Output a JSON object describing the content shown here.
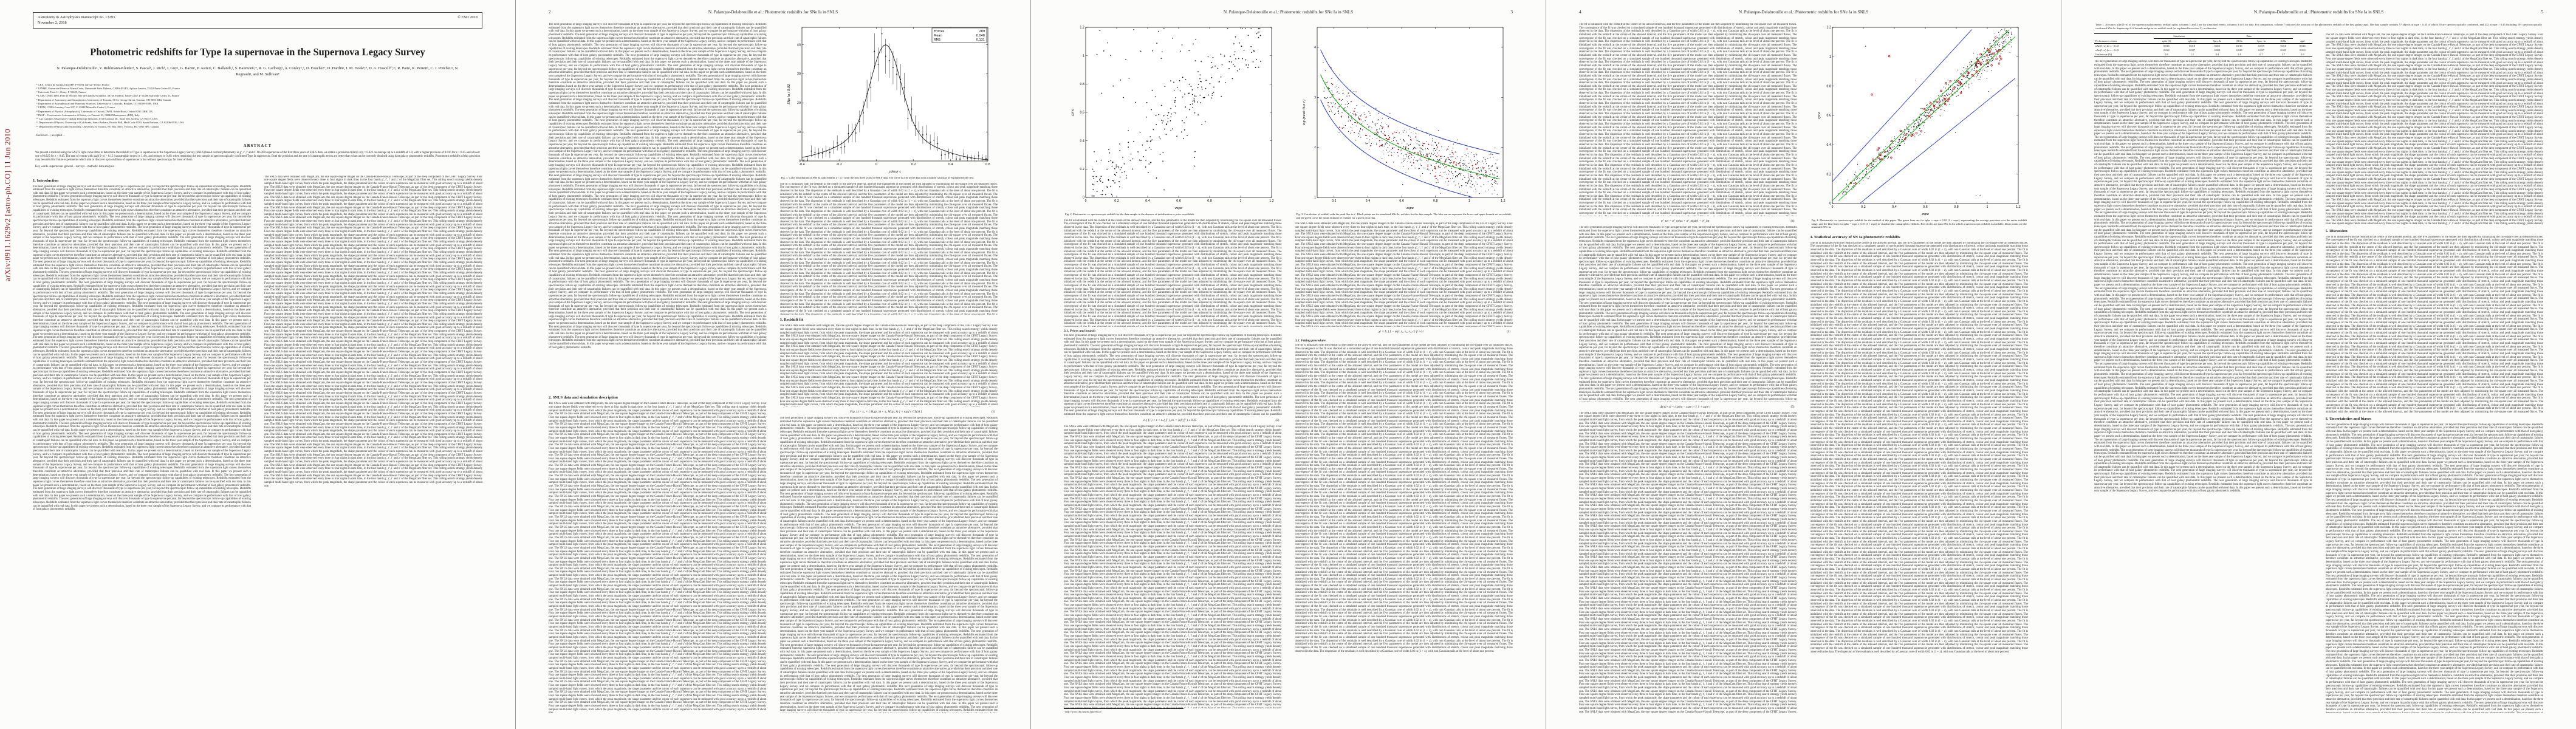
{
  "arxiv": "arXiv:0911.1629v2  [astro-ph.CO]  11 Jun 2010",
  "running_title": "N. Palanque-Delabrouille et al.: Photometric redshifts for SNe Ia in SNLS",
  "pages": {
    "p2": {
      "num": "2"
    },
    "p3": {
      "num": "3"
    },
    "p4": {
      "num": "4"
    },
    "p5": {
      "num": "5"
    }
  },
  "page1": {
    "manuscript": "Astronomy & Astrophysics manuscript no. 13293",
    "date": "November 2, 2018",
    "copyright": "© ESO 2018",
    "title": "Photometric redshifts for Type Ia supernovae in the Supernova Legacy Survey",
    "authors": "N. Palanque-Delabrouille¹, V. Ruhlmann-Kleider¹, S. Pascal¹, J. Rich¹, J. Guy², G. Bazin¹, P. Astier², C. Balland²,³, S. Baumont²,⁴, R. G. Carlberg⁵, A. Conley⁵,⁶, D. Fouchez⁷, D. Hardin², I. M. Hook⁸,⁹, D. A. Howell¹⁰,¹¹, R. Pain², K. Perrett⁵, C. J. Pritchet¹², N. Regnault², and M. Sullivan⁸",
    "affiliations": [
      "¹ CEA, Centre de Saclay, Irfu/SPP, F-91191 Gif-sur-Yvette, France",
      "² LPNHE, Université Pierre et Marie Curie, Université Paris Diderot, CNRS-IN2P3, 4 place Jussieu, 75252 Paris Cedex 05, France",
      "³ Université Paris 11, Orsay, F-91405, France",
      "⁴ LAM, CNRS, BP8, Pôle de l'Étoile, Site de Château-Gombert, 38 rue Frédéric Joliot-Curie, F-13388 Marseille Cedex 13, France",
      "⁵ Department of Astronomy and Astrophysics, University of Toronto, 50 St. George Street, Toronto, ON M5S 3H4, Canada",
      "⁶ Department of Astrophysical and Planetary Sciences, University of Colorado, Boulder, CO 80309-0389, USA",
      "⁷ CPPM, CNRS-Luminy, Case 907, F-13288 Marseille Cedex 9, France",
      "⁸ Department of Physics (Astrophysics), University of Oxford, DWB, Keble Road, Oxford OX1 3RH, UK",
      "⁹ INAF – Osservatorio Astronomico di Roma, via Frascati 33, 00040 Monteporzio (RM), Italy",
      "¹⁰ Las Cumbres Observatory Global Telescope Network, 6740 Cortona Dr., Suite 102, Goleta, CA 93117, USA",
      "¹¹ Department of Physics, University of California, Santa Barbara, Broida Hall, Mail Code 9530, Santa Barbara, CA 93106-9530, USA",
      "¹² Department of Physics and Astronomy, University of Victoria, PO Box 3055, Victoria, BC V8W 3P6, Canada"
    ],
    "received": "Received ...; accepted ...",
    "abstract_label": "ABSTRACT",
    "abstract": "We present a method using the SALT2 light curve fitter to determine the redshift of Type Ia supernovae in the Supernova Legacy Survey (SNLS) based on their photometry in g′, r′, i′ and z′. On 289 supernovae of the first three years of SNLS data, we obtain a precision σ(Δz/(1+z)) = 0.022 on average up to a redshift of 1.0, with a higher precision of 0.016 for z < 0.45 and a lower one of 0.025 for z > 0.45. The rate of events with |Δz|/(1+z) > 0.15 (catastrophic errors) is 1.4%, and reduces to 0.4% when restricting the test sample to spectroscopically confirmed Type Ia supernovae. Both the precision and the rate of catastrophic errors are better than what can be currently obtained using host galaxy photometric redshifts. Photometric redshifts of this precision may be useful for future experiments which aim to discover up to millions of supernovae Ia but without spectroscopy for most of them.",
    "keywords": "Key words.  supernovae: general – surveys – methods: data analysis"
  },
  "headings": {
    "s1": "1. Introduction",
    "s2": "2. SNLS data and simulation description",
    "s3": "3. Redshift fit",
    "s31": "3.1. Priors and bounds",
    "s32": "3.2. Fitting procedure",
    "s4": "4. Statistical accuracy of SN Ia photometric redshifts",
    "s5": "5. Discussion",
    "s6": "6. Uncertainties and biases"
  },
  "captions": {
    "fig1": "Fig. 1. Color distribution of SNe Ia with redshift z < 0.7 from the first three years of SNLS data. The curve is a fit to the data with a double Gaussian as explained in the text.",
    "fig2": "Fig. 2. Photometric vs. spectroscopic redshift for the data sample in the absence of initialization or prior on redshift.",
    "fig3": "Fig. 3. Correlation of redshift with the peak flux in r′. Black points are for simulated SNe Ia, red dots for the data sample. The blue curves represent the lower and upper bounds set on redshift, and the green curve the mean estimate of redshift for a given peak flux.",
    "fig4": "Fig. 4. Photometric vs. spectroscopic redshift for the method of this paper. The green lines are for zpho = zspe ± 0.02 (1 + zspe), representing the average precision over the entire redshift range, and the blue lines for zpho = zspe ± 0.15 (1 + zspe) to visualize the catastrophic redshifts. Red circles are data SNe Ia for which a spectroscopic redshift is available, black points are the simulated SNe Ia."
  },
  "equations": {
    "e1": {
      "body": "F(p, λ) = x₀ × [ M₀(p, λ) + x₁ M₁(p, λ) ] × exp[ c CL(λ) ]",
      "num": "(1)"
    },
    "e2": {
      "body": "z₋( fᵣ′ ) < z < z₊( fᵣ′ ),   z± = ⟨z⟩( fᵣ′ ) ± 0.35",
      "num": "(2)"
    },
    "e3": {
      "body": "χ² = Σᵢ [ fᵢ − φᵢ(z, t₀, x₀, x₁, c) ]² / σᵢ²",
      "num": "(3)"
    },
    "e4": {
      "body": "σ²_tot = σ²_meas + σ²_model + σ²_int",
      "num": "(4)"
    },
    "e5": {
      "body": "Δz/(1+z) = ( zpho − zspe ) / ( 1 + zspe )",
      "num": "(5)"
    }
  },
  "footnotes": {
    "p3": "¹ http://www.cfht.hawaii.edu/SNLS/"
  },
  "filler": {
    "a": "The next generation of large imaging surveys will discover thousands of type Ia supernovae per year, far beyond the spectroscopic follow-up capabilities of existing telescopes. Redshifts estimated from the supernova light curves themselves therefore constitute an attractive alternative, provided that their precision and their rate of catastrophic failures can be quantified with real data. In this paper we present such a determination, based on the three year sample of the Supernova Legacy Survey, and we compare its performance with that of host galaxy photometric redshifts.",
    "b": "The SNLS data were obtained with MegaCam, the one square degree imager on the Canada-France-Hawaii Telescope, as part of the deep component of the CFHT Legacy Survey. Four one square degree fields were observed every three to four nights in dark time, in the four bands g′, r′, i′ and z′ of the MegaCam filter set. This rolling search strategy yields densely sampled multi-band light curves, from which the peak magnitude, the shape parameter and the colour of each supernova can be measured with good accuracy up to a redshift of about one.",
    "c": "The fit is initialized with the redshift at the centre of the allowed interval, and the five parameters of the model are then adjusted by minimizing the chi-square over all measured fluxes. The convergence of the fit was checked on a simulated sample of one hundred thousand supernovae generated with distributions of stretch, colour and peak magnitude matching those observed in the data. The dispersion of the residuals is well described by a Gaussian core of width 0.02 in (1 + z), with non Gaussian tails at the level of about one percent."
  },
  "table1": {
    "caption": "Table 1. Accuracy σΔz/(1+z) of the supernova photometric redshift zpho; columns 1 and 2 are for simulated events, columns 3 to 6 for data. For comparison, column 7 indicates the accuracy of the photometric redshift of the host galaxy zgal. The data sample contains 57 objects at zspe < 0.45 of which 50 are spectroscopically confirmed, and 232 at zspe > 0.45 including 191 spectroscopically confirmed SNe Ia. Superscript S if bounds and prior on redshift used (as explained in section 3), a otherwise.",
    "groups": [
      {
        "label": "",
        "span": 1
      },
      {
        "label": "Simulation",
        "span": 2
      },
      {
        "label": "Data",
        "span": 4
      },
      {
        "label": "",
        "span": 1
      }
    ],
    "columns": [
      "Performance criteria",
      "zpho (S)",
      "zpho (a)",
      "Spec. Ia",
      "All Ia",
      "Spec. Ia",
      "All Ia",
      "zgal"
    ],
    "rows": [
      [
        "σΔz/(1+z) for z < 0.45",
        "0.016",
        "0.018",
        "0.013",
        "0.016",
        "0.015",
        "0.018",
        "0.046"
      ],
      [
        "σΔz/(1+z) for z > 0.45",
        "0.022",
        "0.027",
        "0.024",
        "0.025",
        "0.027",
        "0.029",
        "0.069"
      ],
      [
        "Outlier rate (%)",
        "0.8",
        "1.2",
        "0.4",
        "1.4",
        "0.7",
        "1.7",
        "5.9"
      ]
    ]
  },
  "chart_data": [
    {
      "id": "fig1",
      "type": "histogram",
      "title": "",
      "xlabel": "colour c",
      "ylabel": "SNe Ia / 0.02",
      "xlim": [
        -0.4,
        0.6
      ],
      "ylim": [
        0,
        46
      ],
      "xticks": [
        -0.4,
        -0.2,
        0,
        0.2,
        0.4,
        0.6
      ],
      "yticks": [
        0,
        10,
        20,
        30,
        40
      ],
      "gauss": {
        "mean": 0.05,
        "sigma_core": 0.08,
        "sigma_tail": 0.22,
        "frac_core": 0.75,
        "amplitude": 40
      },
      "stats": {
        "label_entries": "Entries",
        "entries": "289",
        "label_mean": "Mean",
        "mean": "0.048",
        "label_rms": "RMS",
        "rms": "0.131"
      }
    },
    {
      "id": "fig2",
      "type": "scatter",
      "xlabel": "zspe",
      "ylabel": "zpho",
      "xlim": [
        0,
        1.2
      ],
      "ylim": [
        0,
        1.2
      ],
      "xticks": [
        0,
        0.2,
        0.4,
        0.6,
        0.8,
        1,
        1.2
      ],
      "yticks": [
        0,
        0.2,
        0.4,
        0.6,
        0.8,
        1,
        1.2
      ],
      "n_points": 289,
      "scatter_sigma": 0.06,
      "outlier_fraction": 0.22,
      "point_color": "#000000"
    },
    {
      "id": "fig3",
      "type": "scatter",
      "xlabel": "zspe",
      "ylabel": "log (peak flux r′)",
      "xlim": [
        0.1,
        1.2
      ],
      "ylim": [
        1,
        4.4
      ],
      "xticks": [
        0.2,
        0.4,
        0.6,
        0.8,
        1,
        1.2
      ],
      "yticks": [
        1,
        2,
        3,
        4
      ],
      "n_sim": 700,
      "n_data": 90,
      "sim_color": "#000000",
      "data_color": "#cc1111",
      "curve_colors": {
        "mean": "#009900",
        "bounds": "#2233cc"
      },
      "bounds_offset": 0.5
    },
    {
      "id": "fig4",
      "type": "scatter",
      "xlabel": "zspe",
      "ylabel": "zpho",
      "xlim": [
        0,
        1.2
      ],
      "ylim": [
        0,
        1.2
      ],
      "xticks": [
        0,
        0.2,
        0.4,
        0.6,
        0.8,
        1,
        1.2
      ],
      "yticks": [
        0,
        0.2,
        0.4,
        0.6,
        0.8,
        1,
        1.2
      ],
      "n_sim": 700,
      "n_data": 70,
      "sim_color": "#000000",
      "data_color": "#cc1111",
      "band_inner": {
        "coef": 0.02,
        "color": "#00aa00"
      },
      "band_outer": {
        "coef": 0.15,
        "color": "#2233cc"
      }
    }
  ]
}
